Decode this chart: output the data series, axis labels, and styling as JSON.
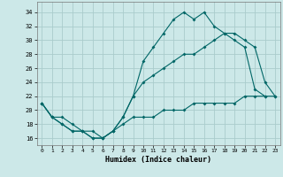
{
  "xlabel": "Humidex (Indice chaleur)",
  "bg_color": "#cce8e8",
  "grid_color": "#aacccc",
  "line_color": "#006666",
  "xlim": [
    -0.5,
    23.5
  ],
  "ylim": [
    15,
    35.5
  ],
  "xticks": [
    0,
    1,
    2,
    3,
    4,
    5,
    6,
    7,
    8,
    9,
    10,
    11,
    12,
    13,
    14,
    15,
    16,
    17,
    18,
    19,
    20,
    21,
    22,
    23
  ],
  "yticks": [
    16,
    18,
    20,
    22,
    24,
    26,
    28,
    30,
    32,
    34
  ],
  "curve1_x": [
    0,
    1,
    2,
    3,
    4,
    5,
    6,
    7,
    8,
    9,
    10,
    11,
    12,
    13,
    14,
    15,
    16,
    17,
    18,
    19,
    20,
    21,
    22,
    23
  ],
  "curve1_y": [
    21,
    19,
    18,
    17,
    17,
    16,
    16,
    17,
    19,
    22,
    27,
    29,
    31,
    33,
    34,
    33,
    34,
    32,
    31,
    30,
    29,
    23,
    22,
    null
  ],
  "curve2_x": [
    0,
    1,
    2,
    3,
    4,
    5,
    6,
    7,
    8,
    9,
    10,
    11,
    12,
    13,
    14,
    15,
    16,
    17,
    18,
    19,
    20,
    21,
    22,
    23
  ],
  "curve2_y": [
    21,
    19,
    18,
    17,
    17,
    16,
    16,
    17,
    19,
    22,
    24,
    25,
    26,
    27,
    28,
    28,
    29,
    30,
    31,
    31,
    30,
    29,
    24,
    22
  ],
  "curve3_x": [
    0,
    1,
    2,
    3,
    4,
    5,
    6,
    7,
    8,
    9,
    10,
    11,
    12,
    13,
    14,
    15,
    16,
    17,
    18,
    19,
    20,
    21,
    22,
    23
  ],
  "curve3_y": [
    21,
    19,
    19,
    18,
    17,
    17,
    16,
    17,
    18,
    19,
    19,
    19,
    20,
    20,
    20,
    21,
    21,
    21,
    21,
    21,
    22,
    22,
    22,
    22
  ]
}
